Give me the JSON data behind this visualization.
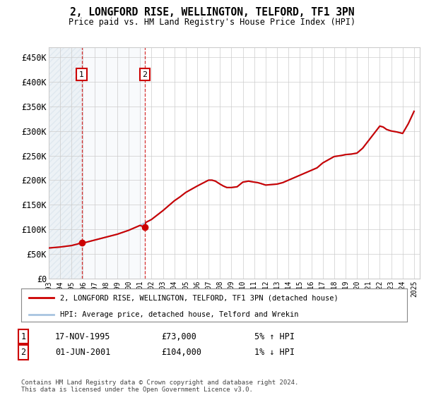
{
  "title": "2, LONGFORD RISE, WELLINGTON, TELFORD, TF1 3PN",
  "subtitle": "Price paid vs. HM Land Registry's House Price Index (HPI)",
  "ylim": [
    0,
    470000
  ],
  "yticks": [
    0,
    50000,
    100000,
    150000,
    200000,
    250000,
    300000,
    350000,
    400000,
    450000
  ],
  "ytick_labels": [
    "£0",
    "£50K",
    "£100K",
    "£150K",
    "£200K",
    "£250K",
    "£300K",
    "£350K",
    "£400K",
    "£450K"
  ],
  "xlim_start": 1993.0,
  "xlim_end": 2025.5,
  "sale1_date": 1995.88,
  "sale1_price": 73000,
  "sale2_date": 2001.42,
  "sale2_price": 104000,
  "hpi_line_color": "#a8c4e0",
  "price_line_color": "#cc0000",
  "grid_color": "#cccccc",
  "legend_line1": "2, LONGFORD RISE, WELLINGTON, TELFORD, TF1 3PN (detached house)",
  "legend_line2": "HPI: Average price, detached house, Telford and Wrekin",
  "table_row1": [
    "1",
    "17-NOV-1995",
    "£73,000",
    "5% ↑ HPI"
  ],
  "table_row2": [
    "2",
    "01-JUN-2001",
    "£104,000",
    "1% ↓ HPI"
  ],
  "footer": "Contains HM Land Registry data © Crown copyright and database right 2024.\nThis data is licensed under the Open Government Licence v3.0.",
  "hpi_years": [
    1993.0,
    1993.5,
    1994.0,
    1994.5,
    1995.0,
    1995.5,
    1996.0,
    1996.5,
    1997.0,
    1997.5,
    1998.0,
    1998.5,
    1999.0,
    1999.5,
    2000.0,
    2000.5,
    2001.0,
    2001.5,
    2002.0,
    2002.5,
    2003.0,
    2003.5,
    2004.0,
    2004.5,
    2005.0,
    2005.5,
    2006.0,
    2006.5,
    2007.0,
    2007.3,
    2007.6,
    2008.0,
    2008.3,
    2008.6,
    2009.0,
    2009.5,
    2010.0,
    2010.5,
    2011.0,
    2011.3,
    2011.6,
    2012.0,
    2012.5,
    2013.0,
    2013.5,
    2014.0,
    2014.5,
    2015.0,
    2015.5,
    2016.0,
    2016.5,
    2017.0,
    2017.5,
    2018.0,
    2018.3,
    2018.6,
    2019.0,
    2019.5,
    2020.0,
    2020.5,
    2021.0,
    2021.5,
    2022.0,
    2022.3,
    2022.6,
    2023.0,
    2023.5,
    2024.0,
    2024.5,
    2025.0
  ],
  "hpi_values": [
    62000,
    63000,
    64000,
    65500,
    67000,
    69500,
    72000,
    75000,
    78000,
    81000,
    84000,
    87000,
    90000,
    94000,
    98000,
    103000,
    108000,
    114000,
    120000,
    129000,
    138000,
    148000,
    158000,
    166000,
    175000,
    181500,
    188000,
    194000,
    200000,
    200000,
    198000,
    192000,
    188000,
    185000,
    185000,
    186500,
    196000,
    198000,
    196000,
    195000,
    193000,
    190000,
    191000,
    192000,
    195000,
    200000,
    205000,
    210000,
    215000,
    220000,
    225000,
    235000,
    241500,
    248000,
    249000,
    250000,
    252000,
    253000,
    255000,
    265000,
    280000,
    295000,
    310000,
    308000,
    303000,
    300000,
    298000,
    295000,
    315000,
    340000
  ],
  "price_years": [
    1993.0,
    1993.5,
    1994.0,
    1994.5,
    1995.0,
    1995.5,
    1995.88,
    1996.0,
    1996.5,
    1997.0,
    1997.5,
    1998.0,
    1998.5,
    1999.0,
    1999.5,
    2000.0,
    2000.5,
    2001.0,
    2001.42,
    2001.5,
    2002.0,
    2002.5,
    2003.0,
    2003.5,
    2004.0,
    2004.5,
    2005.0,
    2005.5,
    2006.0,
    2006.5,
    2007.0,
    2007.3,
    2007.6,
    2008.0,
    2008.3,
    2008.6,
    2009.0,
    2009.5,
    2010.0,
    2010.5,
    2011.0,
    2011.3,
    2011.6,
    2012.0,
    2012.5,
    2013.0,
    2013.5,
    2014.0,
    2014.5,
    2015.0,
    2015.5,
    2016.0,
    2016.5,
    2017.0,
    2017.5,
    2018.0,
    2018.3,
    2018.6,
    2019.0,
    2019.5,
    2020.0,
    2020.5,
    2021.0,
    2021.5,
    2022.0,
    2022.3,
    2022.6,
    2023.0,
    2023.5,
    2024.0,
    2024.5,
    2025.0
  ],
  "price_values": [
    62000,
    63000,
    64000,
    65500,
    67000,
    70000,
    73000,
    72000,
    75000,
    78000,
    81000,
    84000,
    87000,
    90000,
    94000,
    98000,
    103000,
    108000,
    104000,
    114000,
    120000,
    129000,
    138000,
    148000,
    158000,
    166000,
    175000,
    181500,
    188000,
    194000,
    200000,
    200000,
    198000,
    192000,
    188000,
    185000,
    185000,
    186500,
    196000,
    198000,
    196000,
    195000,
    193000,
    190000,
    191000,
    192000,
    195000,
    200000,
    205000,
    210000,
    215000,
    220000,
    225000,
    235000,
    241500,
    248000,
    249000,
    250000,
    252000,
    253000,
    255000,
    265000,
    280000,
    295000,
    310000,
    308000,
    303000,
    300000,
    298000,
    295000,
    315000,
    340000
  ]
}
